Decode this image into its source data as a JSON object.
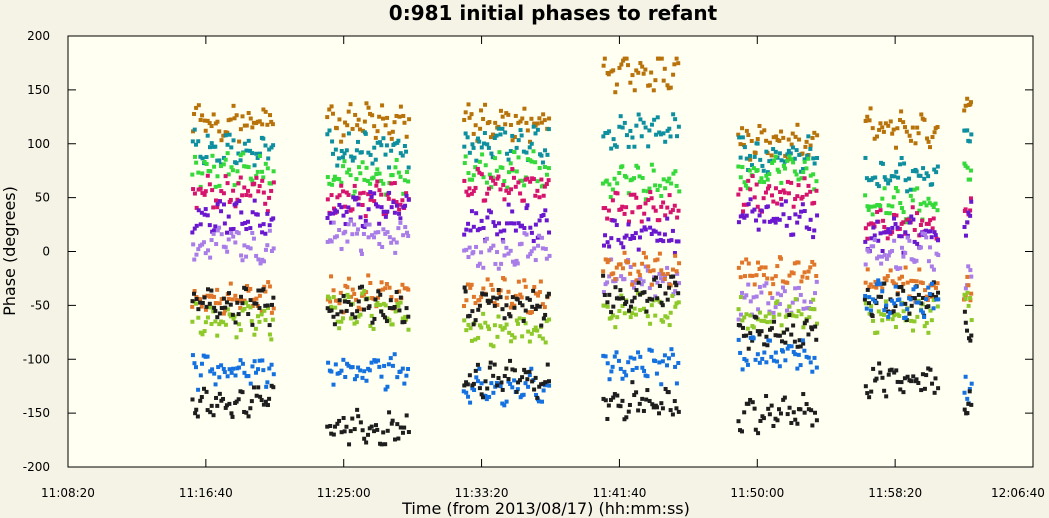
{
  "colors": {
    "background": "#f5f3e6",
    "plot_background": "#fffff2",
    "axis": "#000000"
  },
  "chart_data": {
    "type": "scatter",
    "title": "0:981 initial phases to refant",
    "xlabel": "Time (from 2013/08/17) (hh:mm:ss)",
    "ylabel": "Phase (degrees)",
    "xlim": [
      "11:08:20",
      "12:06:40"
    ],
    "ylim": [
      -200,
      200
    ],
    "xticks": [
      "11:08:20",
      "11:16:40",
      "11:25:00",
      "11:33:20",
      "11:41:40",
      "11:50:00",
      "11:58:20",
      "12:06:40"
    ],
    "yticks": [
      200,
      150,
      100,
      50,
      0,
      -50,
      -100,
      -150,
      -200
    ],
    "grid": false,
    "legend": "none",
    "scans": [
      {
        "start": "11:15:50",
        "end": "11:20:50"
      },
      {
        "start": "11:24:00",
        "end": "11:29:00"
      },
      {
        "start": "11:32:15",
        "end": "11:37:30"
      },
      {
        "start": "11:40:40",
        "end": "11:45:20"
      },
      {
        "start": "11:48:50",
        "end": "11:53:40"
      },
      {
        "start": "11:56:30",
        "end": "12:01:00"
      },
      {
        "start": "12:02:30",
        "end": "12:03:00"
      }
    ],
    "series": [
      {
        "color": "#b8720a",
        "baselines": [
          120,
          120,
          120,
          165,
          100,
          115,
          140
        ]
      },
      {
        "color": "#0d8f9f",
        "baselines": [
          95,
          95,
          100,
          110,
          90,
          70,
          110
        ]
      },
      {
        "color": "#35d93a",
        "baselines": [
          75,
          70,
          75,
          65,
          75,
          45,
          80
        ]
      },
      {
        "color": "#d6146e",
        "baselines": [
          55,
          50,
          60,
          40,
          55,
          25,
          40
        ]
      },
      {
        "color": "#6a17d0",
        "baselines": [
          30,
          40,
          25,
          15,
          30,
          15,
          30
        ]
      },
      {
        "color": "#a97de8",
        "baselines": [
          5,
          15,
          0,
          -25,
          -45,
          0,
          -30
        ]
      },
      {
        "color": "#e0762a",
        "baselines": [
          -45,
          -40,
          -40,
          -15,
          -20,
          -30,
          -40
        ]
      },
      {
        "color": "#8ec92a",
        "baselines": [
          -65,
          -55,
          -70,
          -55,
          -60,
          -60,
          -50
        ]
      },
      {
        "color": "#1e1e1e",
        "baselines": [
          -50,
          -50,
          -50,
          -40,
          -75,
          -45,
          -70
        ]
      },
      {
        "color": "#1571e0",
        "baselines": [
          -110,
          -110,
          -125,
          -105,
          -95,
          -45,
          -125
        ]
      },
      {
        "color": "#1e1e1e",
        "baselines": [
          -140,
          -165,
          -120,
          -140,
          -150,
          -120,
          -140
        ]
      }
    ]
  }
}
